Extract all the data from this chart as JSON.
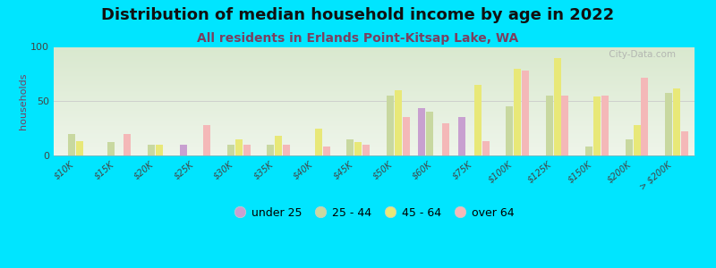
{
  "title": "Distribution of median household income by age in 2022",
  "subtitle": "All residents in Erlands Point-Kitsap Lake, WA",
  "ylabel": "households",
  "ylim": [
    0,
    100
  ],
  "yticks": [
    0,
    50,
    100
  ],
  "background_color": "#00e5ff",
  "categories": [
    "$10K",
    "$15K",
    "$20K",
    "$25K",
    "$30K",
    "$35K",
    "$40K",
    "$45K",
    "$50K",
    "$60K",
    "$75K",
    "$100K",
    "$125K",
    "$150K",
    "$200K",
    "> $200K"
  ],
  "age_groups": [
    "under 25",
    "25 - 44",
    "45 - 64",
    "over 64"
  ],
  "colors": [
    "#c8a0d0",
    "#c8d8a0",
    "#e8e878",
    "#f4b8b8"
  ],
  "data": {
    "under 25": [
      0,
      0,
      0,
      10,
      0,
      0,
      0,
      0,
      0,
      44,
      35,
      0,
      0,
      0,
      0,
      0
    ],
    "25 - 44": [
      20,
      12,
      10,
      0,
      10,
      10,
      0,
      15,
      55,
      40,
      0,
      45,
      55,
      8,
      15,
      58
    ],
    "45 - 64": [
      13,
      0,
      10,
      0,
      15,
      18,
      25,
      12,
      60,
      0,
      65,
      80,
      90,
      54,
      28,
      62
    ],
    "over 64": [
      0,
      20,
      0,
      28,
      10,
      10,
      8,
      10,
      35,
      30,
      13,
      78,
      55,
      55,
      72,
      22
    ]
  },
  "title_fontsize": 13,
  "subtitle_fontsize": 10,
  "tick_fontsize": 7,
  "ylabel_fontsize": 8,
  "legend_fontsize": 9,
  "watermark": " City-Data.com"
}
